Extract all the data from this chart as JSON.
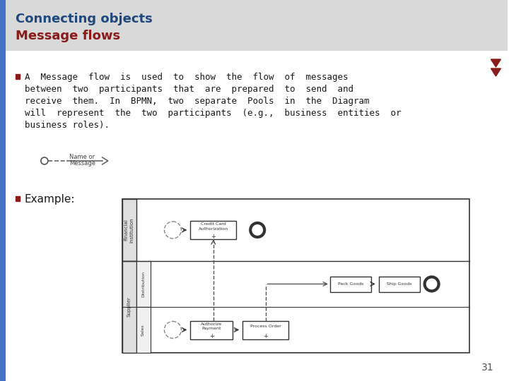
{
  "title_line1": "Connecting objects",
  "title_line2": "Message flows",
  "title_line1_color": "#1F497D",
  "title_line2_color": "#8B1A1A",
  "header_bg_color": "#D9D9D9",
  "left_bar_color": "#4472C4",
  "background_color": "#FFFFFF",
  "bullet_color": "#8B1A1A",
  "text_color": "#1A1A1A",
  "arrow_nav_color": "#8B1A1A",
  "page_number": "31",
  "body_lines": [
    "A  Message  flow  is  used  to  show  the  flow  of  messages",
    "between  two  participants  that  are  prepared  to  send  and",
    "receive  them.  In  BPMN,  two  separate  Pools  in  the  Diagram",
    "will  represent  the  two  participants  (e.g.,  business  entities  or",
    "business roles)."
  ],
  "example_label": "Example:"
}
